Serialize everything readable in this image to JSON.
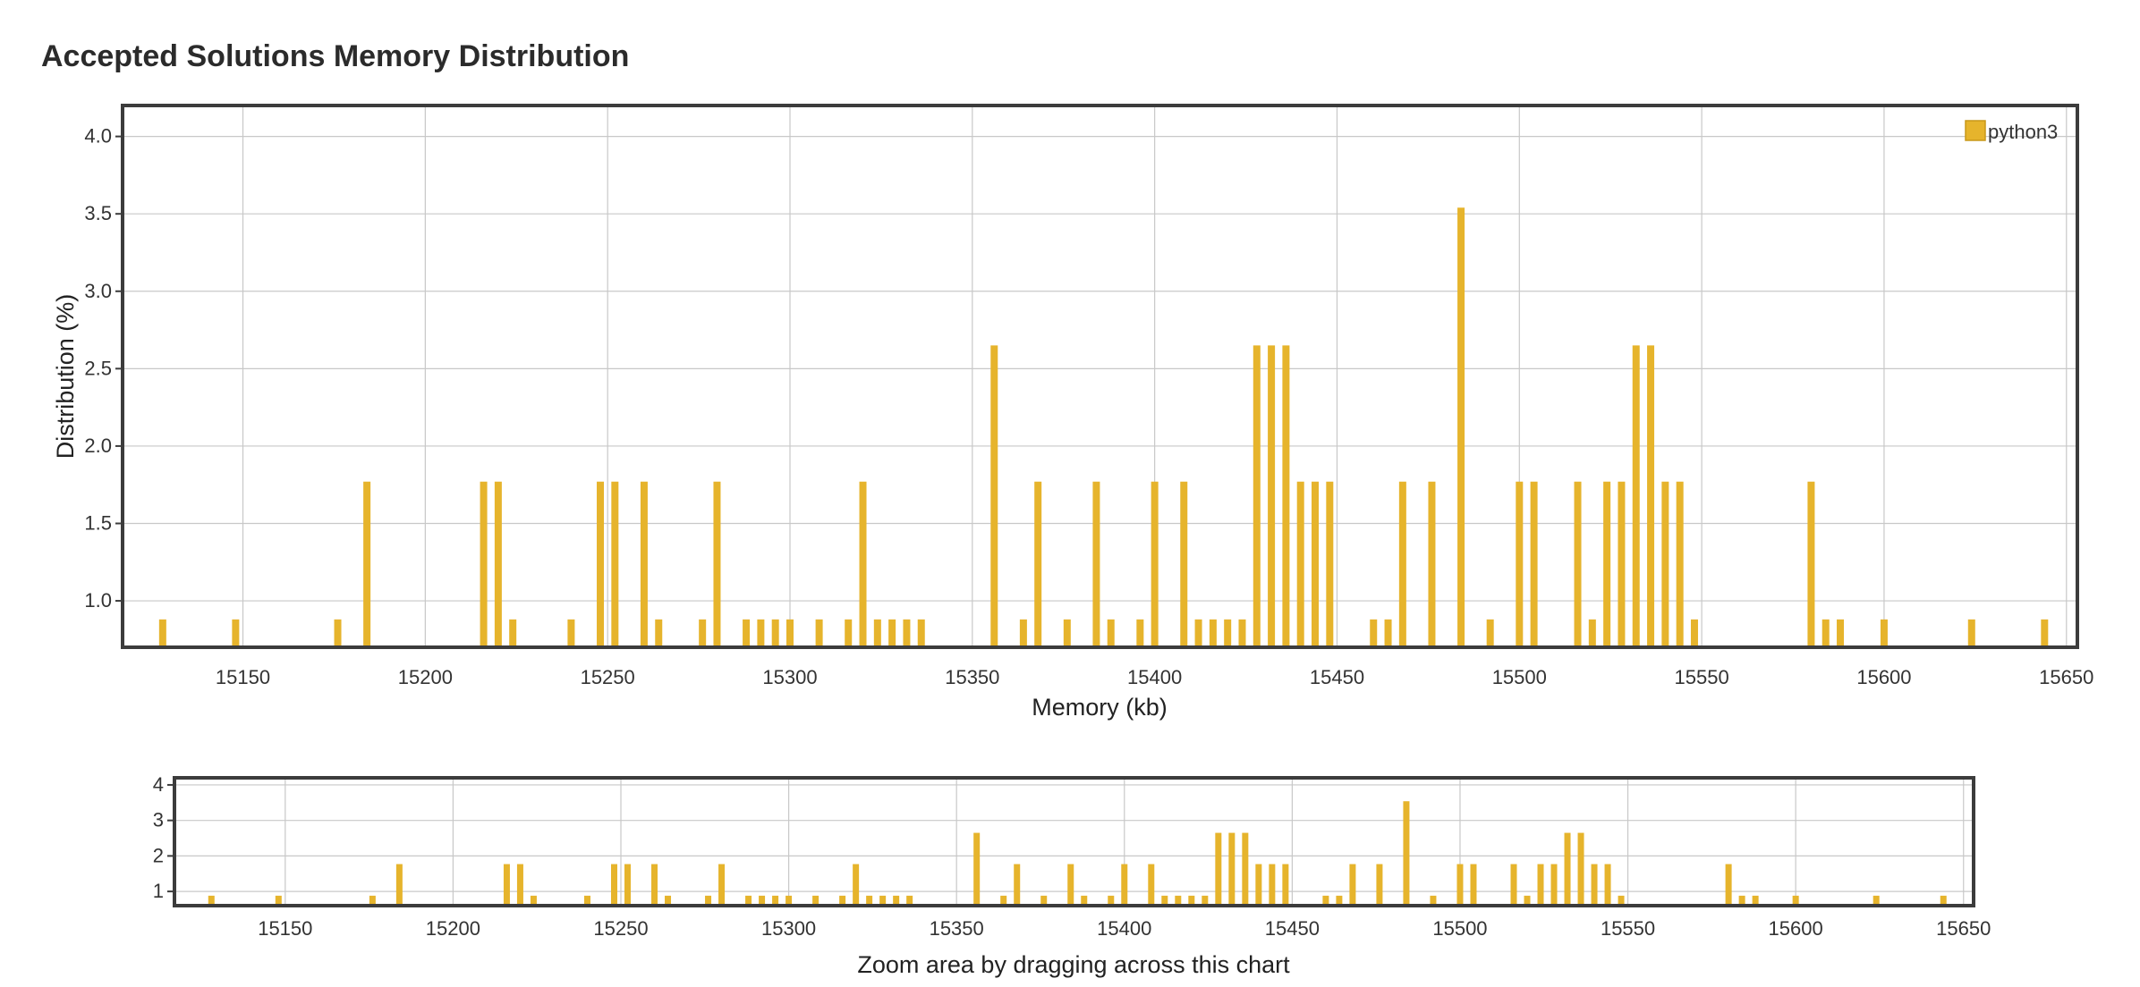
{
  "page_title": "Accepted Solutions Memory Distribution",
  "legend": {
    "label": "python3"
  },
  "overview_hint": "Zoom area by dragging across this chart",
  "colors": {
    "bar": "#e6b42c",
    "frame": "#3c3c3c",
    "grid": "#c8c8c8"
  },
  "chart_data": [
    {
      "type": "bar",
      "title": "Accepted Solutions Memory Distribution",
      "xlabel": "Memory (kb)",
      "ylabel": "Distribution (%)",
      "xlim": [
        15117,
        15653
      ],
      "ylim": [
        0.7,
        4.2
      ],
      "xticks": [
        15150,
        15200,
        15250,
        15300,
        15350,
        15400,
        15450,
        15500,
        15550,
        15600,
        15650
      ],
      "yticks": [
        1.0,
        1.5,
        2.0,
        2.5,
        3.0,
        3.5,
        4.0
      ],
      "ytick_labels": [
        "1.0",
        "1.5",
        "2.0",
        "2.5",
        "3.0",
        "3.5",
        "4.0"
      ],
      "grid": true,
      "legend_position": "top-right",
      "series": [
        {
          "name": "python3",
          "x": [
            15128,
            15148,
            15176,
            15184,
            15216,
            15220,
            15224,
            15240,
            15248,
            15252,
            15260,
            15264,
            15276,
            15280,
            15288,
            15292,
            15296,
            15300,
            15308,
            15316,
            15320,
            15324,
            15328,
            15332,
            15336,
            15356,
            15364,
            15368,
            15376,
            15384,
            15388,
            15396,
            15400,
            15408,
            15412,
            15416,
            15420,
            15424,
            15428,
            15432,
            15436,
            15440,
            15444,
            15448,
            15460,
            15464,
            15468,
            15476,
            15484,
            15492,
            15500,
            15504,
            15516,
            15520,
            15524,
            15528,
            15532,
            15536,
            15540,
            15544,
            15548,
            15580,
            15584,
            15588,
            15600,
            15624,
            15644
          ],
          "values": [
            0.88,
            0.88,
            0.88,
            1.77,
            1.77,
            1.77,
            0.88,
            0.88,
            1.77,
            1.77,
            1.77,
            0.88,
            0.88,
            1.77,
            0.88,
            0.88,
            0.88,
            0.88,
            0.88,
            0.88,
            1.77,
            0.88,
            0.88,
            0.88,
            0.88,
            2.65,
            0.88,
            1.77,
            0.88,
            1.77,
            0.88,
            0.88,
            1.77,
            1.77,
            0.88,
            0.88,
            0.88,
            0.88,
            2.65,
            2.65,
            2.65,
            1.77,
            1.77,
            1.77,
            0.88,
            0.88,
            1.77,
            1.77,
            3.54,
            0.88,
            1.77,
            1.77,
            1.77,
            0.88,
            1.77,
            1.77,
            2.65,
            2.65,
            1.77,
            1.77,
            0.88,
            1.77,
            0.88,
            0.88,
            0.88,
            0.88,
            0.88
          ]
        }
      ]
    },
    {
      "type": "bar",
      "xlabel": "Zoom area by dragging across this chart",
      "xlim": [
        15117,
        15653
      ],
      "ylim": [
        0.6,
        4.2
      ],
      "xticks": [
        15150,
        15200,
        15250,
        15300,
        15350,
        15400,
        15450,
        15500,
        15550,
        15600,
        15650
      ],
      "yticks": [
        1,
        2,
        3,
        4
      ],
      "ytick_labels": [
        "1",
        "2",
        "3",
        "4"
      ],
      "grid": true,
      "series_ref": 0
    }
  ]
}
